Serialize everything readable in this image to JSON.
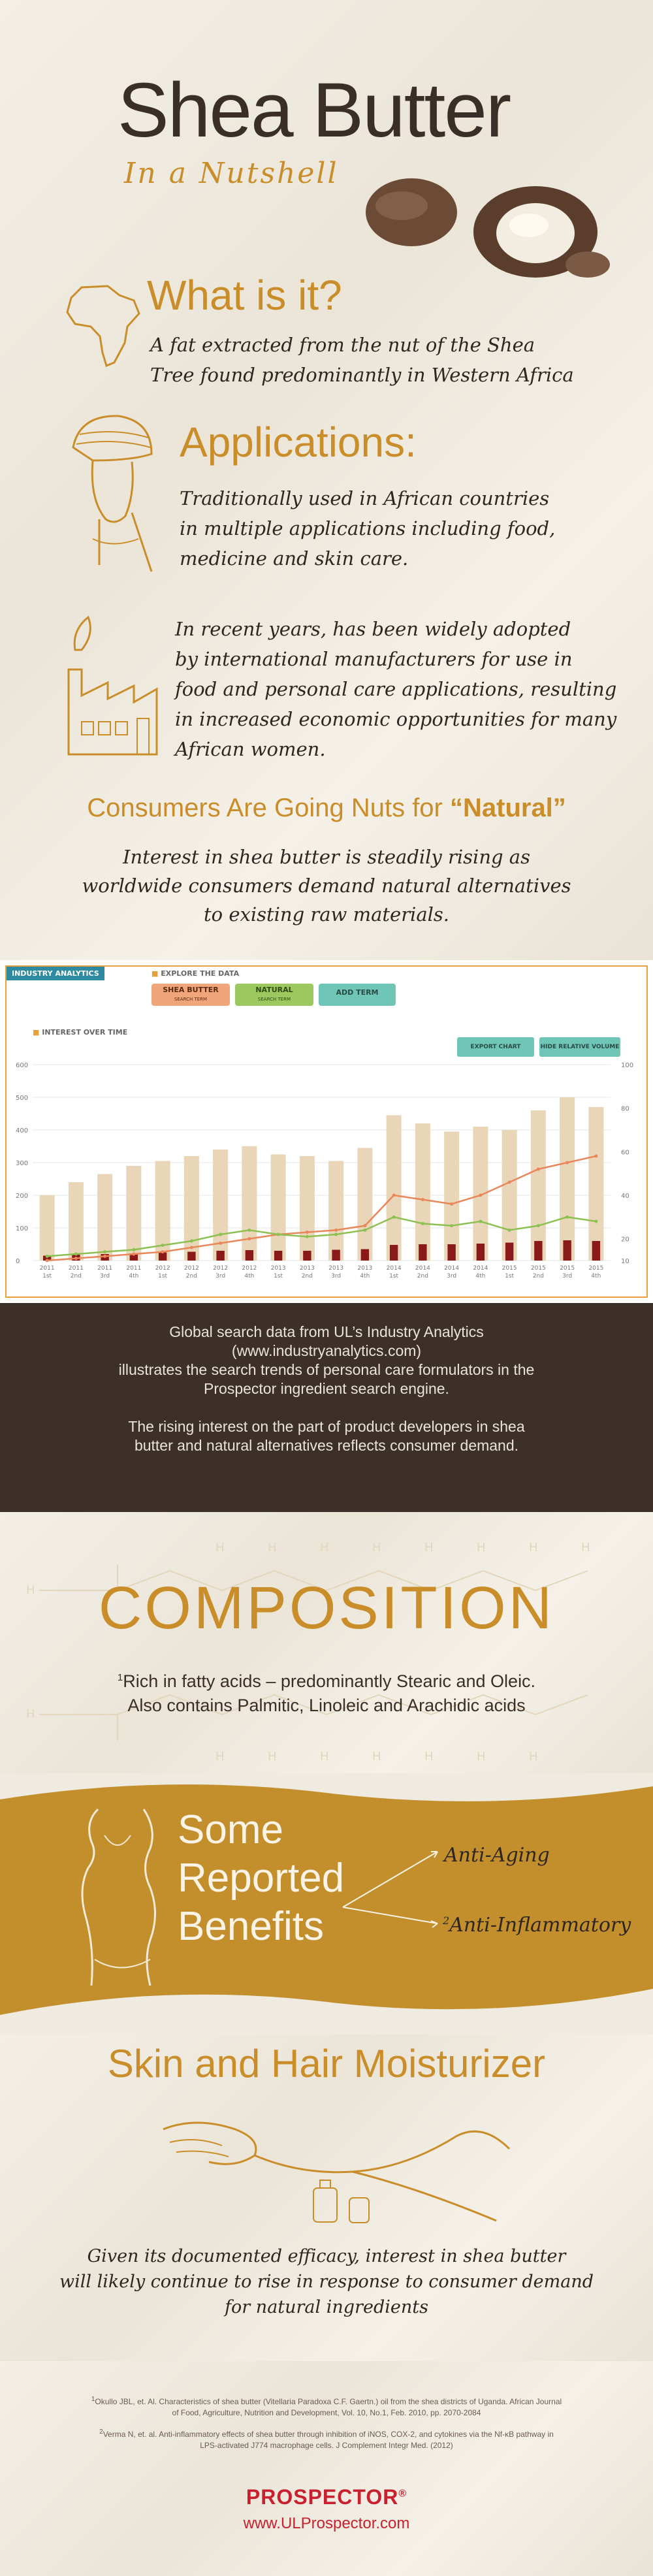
{
  "header": {
    "title": "Shea Butter",
    "subtitle": "In a Nutshell"
  },
  "what_is_it": {
    "heading": "What is it?",
    "body_line1": "A fat extracted from the nut of the Shea",
    "body_line2": "Tree found predominantly in Western Africa"
  },
  "applications": {
    "heading": "Applications:",
    "p1_line1": "Traditionally used in African countries",
    "p1_line2": "in multiple applications including food,",
    "p1_line3": "medicine and skin care.",
    "p2_line1": "In recent years, has been widely adopted",
    "p2_line2": "by international manufacturers for use in",
    "p2_line3": "food and personal care applications, resulting",
    "p2_line4": "in increased economic opportunities for many",
    "p2_line5": "African women."
  },
  "natural": {
    "heading_a": "Consumers Are Going Nuts for ",
    "heading_b": "“Natural”",
    "body_line1": "Interest in shea butter is steadily rising as",
    "body_line2": "worldwide consumers demand natural alternatives",
    "body_line3": "to existing raw materials."
  },
  "analytics": {
    "badge": "INDUSTRY ANALYTICS",
    "explore": "EXPLORE THE DATA",
    "terms": [
      {
        "label": "SHEA BUTTER",
        "sub": "SEARCH TERM",
        "color": "#f0a57a"
      },
      {
        "label": "NATURAL",
        "sub": "SEARCH TERM",
        "color": "#9bc95f"
      },
      {
        "label": "ADD TERM",
        "sub": "",
        "color": "#6fc6b6"
      }
    ],
    "interest_label": "INTEREST OVER TIME",
    "export_label": "EXPORT CHART",
    "hide_label": "HIDE RELATIVE VOLUME"
  },
  "chart_data": {
    "type": "bar",
    "title": "",
    "xlabel": "",
    "ylabel": "",
    "ylim": [
      0,
      600
    ],
    "y2lim": [
      10,
      100
    ],
    "y_ticks": [
      "600",
      "500",
      "400",
      "300",
      "200",
      "100",
      "0"
    ],
    "y2_ticks": [
      "100",
      "80",
      "60",
      "40",
      "20",
      "10"
    ],
    "categories": [
      "2011 1st Qtr",
      "2011 2nd Qtr",
      "2011 3rd Qtr",
      "2011 4th Qtr",
      "2012 1st Qtr",
      "2012 2nd Qtr",
      "2012 3rd Qtr",
      "2012 4th Qtr",
      "2013 1st Qtr",
      "2013 2nd Qtr",
      "2013 3rd Qtr",
      "2013 4th Qtr",
      "2014 1st Qtr",
      "2014 2nd Qtr",
      "2014 3rd Qtr",
      "2014 4th Qtr",
      "2015 1st Qtr",
      "2015 2nd Qtr",
      "2015 3rd Qtr",
      "2015 4th Qtr"
    ],
    "x_years": [
      "2011",
      "2011",
      "2011",
      "2011",
      "2012",
      "2012",
      "2012",
      "2012",
      "2013",
      "2013",
      "2013",
      "2013",
      "2014",
      "2014",
      "2014",
      "2014",
      "2015",
      "2015",
      "2015",
      "2015"
    ],
    "x_quarters": [
      "1st",
      "2nd",
      "3rd",
      "4th",
      "1st",
      "2nd",
      "3rd",
      "4th",
      "1st",
      "2nd",
      "3rd",
      "4th",
      "1st",
      "2nd",
      "3rd",
      "4th",
      "1st",
      "2nd",
      "3rd",
      "4th"
    ],
    "series": [
      {
        "kind": "bar",
        "color": "#e9d6b8",
        "values": [
          200,
          240,
          265,
          290,
          305,
          320,
          340,
          350,
          325,
          320,
          305,
          345,
          445,
          420,
          395,
          410,
          400,
          460,
          500,
          470
        ]
      },
      {
        "kind": "bar",
        "color": "#8a1a1a",
        "values": [
          15,
          18,
          20,
          22,
          25,
          27,
          30,
          32,
          30,
          30,
          33,
          35,
          48,
          50,
          50,
          52,
          55,
          60,
          62,
          60
        ]
      },
      {
        "kind": "line",
        "color": "#e8875a",
        "values": [
          10,
          11,
          12,
          13,
          14,
          16,
          18,
          20,
          22,
          23,
          24,
          26,
          40,
          38,
          36,
          40,
          46,
          52,
          55,
          58
        ]
      },
      {
        "kind": "line",
        "color": "#8cc152",
        "values": [
          12,
          13,
          14,
          15,
          17,
          19,
          22,
          24,
          22,
          21,
          22,
          24,
          30,
          27,
          26,
          28,
          24,
          26,
          30,
          28
        ]
      }
    ]
  },
  "global_search": {
    "l1": "Global search data from UL’s Industry Analytics",
    "l2": "(www.industryanalytics.com)",
    "l3": "illustrates the search trends of personal care formulators in the",
    "l4": "Prospector ingredient search engine.",
    "l5": "The rising interest on the part of product developers in shea",
    "l6": "butter and natural alternatives reflects consumer demand."
  },
  "composition": {
    "heading": "COMPOSITION",
    "line1_sup": "1",
    "line1": "Rich in fatty acids – predominantly Stearic and Oleic.",
    "line2": "Also contains Palmitic, Linoleic and  Arachidic acids"
  },
  "benefits": {
    "h1": "Some",
    "h2": "Reported",
    "h3": "Benefits",
    "b1": "Anti-Aging",
    "b2_sup": "2",
    "b2": "Anti-Inflammatory"
  },
  "moisturizer": {
    "heading": "Skin and Hair Moisturizer",
    "l1": "Given its documented efficacy, interest in shea butter",
    "l2": "will likely continue to rise in response to consumer demand",
    "l3": "for natural ingredients"
  },
  "footnotes": {
    "f1_sup": "1",
    "f1a": "Okullo JBL, et. Al. Characteristics of shea butter (Vitellaria Paradoxa C.F. Gaertn.) oil from the shea districts of Uganda. African Journal",
    "f1b": "of Food, Agriculture, Nutrition and Development, Vol. 10, No.1, Feb. 2010, pp. 2070-2084",
    "f2_sup": "2",
    "f2a": "Verma N, et. al. Anti-inflammatory effects of shea butter through inhibition of iNOS, COX-2, and cytokines via the Nf-κB pathway in",
    "f2b": "LPS-activated J774 macrophage cells. J Complement Integr Med. (2012)"
  },
  "brand": {
    "name": "PROSPECTOR",
    "reg": "®",
    "url": "www.ULProspector.com",
    "color": "#c8202f"
  }
}
